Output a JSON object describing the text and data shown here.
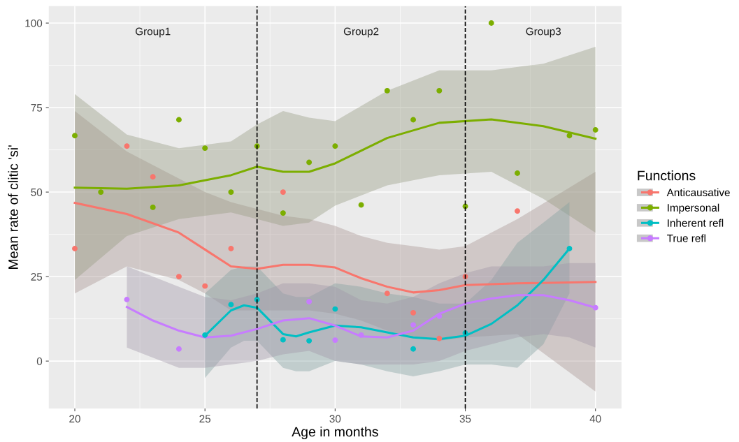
{
  "chart_data": {
    "type": "scatter",
    "xlabel": "Age in months",
    "ylabel": "Mean rate of clitic 'si'",
    "legend_title": "Functions",
    "legend": "right",
    "grid": true,
    "marker": "circle",
    "xlim": [
      19,
      41
    ],
    "xticks": [
      20,
      25,
      30,
      35,
      40
    ],
    "ylim": [
      -14,
      105
    ],
    "yticks": [
      0,
      25,
      50,
      75,
      100
    ],
    "ref_lines": [
      {
        "axis": "x",
        "value": 27,
        "label": null,
        "color": "#000000",
        "line_style": "dashed"
      },
      {
        "axis": "x",
        "value": 35,
        "label": null,
        "color": "#000000",
        "line_style": "dashed"
      }
    ],
    "annotations": [
      "Group1",
      "Group2",
      "Group3"
    ],
    "series": [
      {
        "name": "Anticausative",
        "color": "#f8766d",
        "x": [
          20,
          22,
          23,
          24,
          25,
          26,
          28,
          32,
          33,
          34,
          35,
          37
        ],
        "values": [
          33.3,
          63.6,
          54.5,
          25,
          22.2,
          33.3,
          50,
          20,
          14.3,
          6.7,
          25,
          44.4
        ]
      },
      {
        "name": "Impersonal",
        "color": "#7cae00",
        "x": [
          20,
          21,
          23,
          24,
          25,
          26,
          27,
          28,
          29,
          30,
          31,
          32,
          33,
          34,
          35,
          36,
          37,
          39,
          40
        ],
        "values": [
          66.7,
          50,
          45.5,
          71.4,
          63,
          50,
          63.6,
          43.8,
          58.8,
          63.6,
          46.2,
          80,
          71.4,
          80,
          45.8,
          100,
          55.6,
          66.7,
          68.4
        ]
      },
      {
        "name": "Inherent refl",
        "color": "#00bfc4",
        "x": [
          25,
          26,
          27,
          28,
          29,
          30,
          33,
          35,
          39
        ],
        "values": [
          7.7,
          16.7,
          18.2,
          6.3,
          6,
          15.4,
          3.6,
          8.3,
          33.3
        ]
      },
      {
        "name": "True refl",
        "color": "#c77cff",
        "x": [
          22,
          24,
          29,
          30,
          31,
          33,
          34,
          40
        ],
        "values": [
          18.2,
          3.6,
          17.6,
          6.2,
          7.7,
          10.7,
          13.3,
          15.8
        ]
      },
      {
        "type": "line",
        "marker": "none",
        "color": "#f8766d",
        "x": [
          20,
          22,
          24,
          25,
          26,
          27,
          28,
          29,
          30,
          31,
          32,
          33,
          34,
          35,
          37,
          40
        ],
        "values": [
          46.8,
          43.5,
          38,
          33,
          28,
          27.3,
          28.5,
          28.5,
          27.7,
          24.5,
          22,
          20.3,
          21,
          22.5,
          23,
          23.4
        ],
        "lower": [
          20,
          28,
          24,
          20,
          15,
          15,
          15,
          15,
          14,
          12,
          9,
          7,
          6,
          7,
          8,
          -9
        ],
        "upper": [
          74,
          62,
          54,
          50,
          47,
          45,
          43,
          42,
          40,
          37,
          35,
          34,
          33,
          34,
          42,
          56
        ]
      },
      {
        "type": "line",
        "marker": "none",
        "color": "#7cae00",
        "x": [
          20,
          22,
          24,
          26,
          27,
          28,
          29,
          30,
          32,
          34,
          36,
          38,
          40
        ],
        "values": [
          51.3,
          51,
          52,
          55,
          57.5,
          56,
          56,
          58.5,
          66,
          70.5,
          71.5,
          69.5,
          65.8
        ],
        "lower": [
          24,
          37,
          42,
          44,
          42,
          40,
          41,
          46,
          52,
          55,
          56,
          48,
          38
        ],
        "upper": [
          79,
          67,
          63,
          65,
          70,
          74,
          72,
          71,
          80,
          86,
          86,
          88,
          93
        ]
      },
      {
        "type": "line",
        "marker": "none",
        "color": "#00bfc4",
        "x": [
          25,
          26,
          26.5,
          27,
          28,
          28.5,
          29,
          30,
          31,
          32,
          33,
          34,
          35,
          36,
          37,
          38,
          39
        ],
        "values": [
          7.5,
          15,
          16.5,
          15.8,
          8,
          7.3,
          8.5,
          10.5,
          10,
          8.5,
          7,
          6.5,
          7.5,
          11,
          16.5,
          24,
          33.3
        ],
        "lower": [
          -5,
          4,
          6,
          6,
          -2,
          -3,
          -3,
          0,
          -1,
          -3,
          -4.5,
          -3,
          -1,
          -1,
          -2,
          5,
          20
        ],
        "upper": [
          20,
          27,
          28,
          28,
          20,
          19,
          19,
          23,
          22,
          20,
          19,
          17,
          17,
          24,
          35,
          41,
          47
        ]
      },
      {
        "type": "line",
        "marker": "none",
        "color": "#c77cff",
        "x": [
          22,
          23,
          24,
          25,
          26,
          27,
          28,
          29,
          30,
          31,
          32,
          33,
          34,
          35,
          36,
          37,
          38,
          39,
          40
        ],
        "values": [
          16,
          12,
          9,
          7,
          7.5,
          9.5,
          12,
          12.7,
          10.5,
          7.3,
          7,
          9,
          14,
          17,
          18.5,
          19.5,
          19.5,
          18,
          15.8
        ],
        "lower": [
          4,
          1,
          -2,
          -2,
          -1,
          0,
          2,
          3,
          0,
          -1,
          -1,
          -1,
          0,
          3,
          5,
          7,
          8,
          7,
          4
        ],
        "upper": [
          28,
          25,
          22,
          19,
          18,
          20,
          23,
          23,
          22,
          18,
          17,
          19,
          23,
          26,
          28,
          28,
          28,
          29,
          29
        ]
      }
    ]
  }
}
